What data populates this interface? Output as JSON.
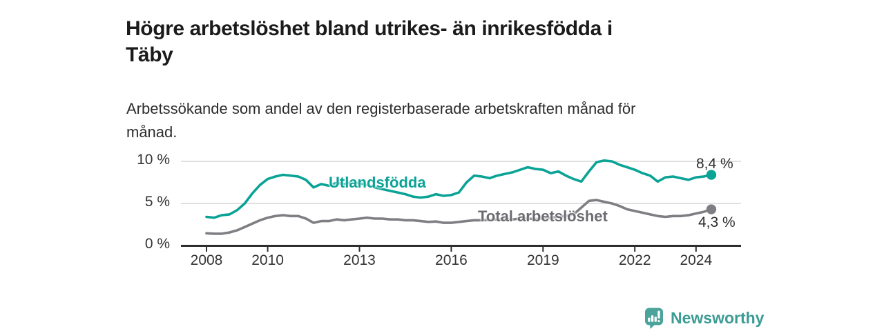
{
  "header": {
    "title": "Högre arbetslöshet bland utrikes- än inrikesfödda i Täby",
    "title_line1": "Högre arbetslöshet bland utrikes- än inrikesfödda i",
    "title_line2": "Täby",
    "subtitle": "Arbetssökande som andel av den registerbaserade arbetskraften månad för månad.",
    "subtitle_line1": "Arbetssökande som andel av den registerbaserade arbetskraften månad för",
    "subtitle_line2": "månad."
  },
  "footer": {
    "brand": "Newsworthy",
    "logo_icon": "bar-chart-speech-bubble-icon",
    "brand_color": "#3c9c95",
    "icon_color": "#4ba39c"
  },
  "chart_data": {
    "type": "line",
    "title": "Högre arbetslöshet bland utrikes- än inrikesfödda i Täby",
    "subtitle": "Arbetssökande som andel av den registerbaserade arbetskraften månad för månad.",
    "x_unit": "year",
    "x_start": 2008.0,
    "x_step": 0.25,
    "xlim": [
      2008,
      2024.7
    ],
    "ylim": [
      0,
      10.5
    ],
    "grid": "horizontal",
    "legend": "inline-labels",
    "x_ticks": [
      2008,
      2010,
      2013,
      2016,
      2019,
      2022,
      2024
    ],
    "y_ticks": [
      {
        "value": 0,
        "label": "0 %"
      },
      {
        "value": 5,
        "label": "5 %"
      },
      {
        "value": 10,
        "label": "10 %"
      }
    ],
    "colors": {
      "grid": "#d5d5d5",
      "axis": "#2e2e2e",
      "tick_text": "#333333"
    },
    "series": [
      {
        "name": "Total arbetslöshet",
        "color": "#7e7e83",
        "label_color": "#6b6b70",
        "end_label": "4,3 %",
        "end_value": 4.3,
        "values": [
          1.45,
          1.4,
          1.4,
          1.55,
          1.8,
          2.2,
          2.6,
          3.0,
          3.3,
          3.5,
          3.6,
          3.5,
          3.5,
          3.2,
          2.7,
          2.9,
          2.9,
          3.1,
          3.0,
          3.1,
          3.2,
          3.3,
          3.2,
          3.2,
          3.1,
          3.1,
          3.0,
          3.0,
          2.9,
          2.8,
          2.85,
          2.7,
          2.7,
          2.8,
          2.9,
          3.0,
          3.0,
          3.05,
          3.1,
          3.1,
          3.1,
          3.2,
          3.2,
          3.15,
          3.2,
          3.3,
          3.4,
          3.5,
          3.7,
          4.5,
          5.3,
          5.4,
          5.2,
          5.0,
          4.7,
          4.3,
          4.1,
          3.9,
          3.7,
          3.5,
          3.4,
          3.5,
          3.5,
          3.6,
          3.8,
          4.0,
          4.3
        ]
      },
      {
        "name": "Utlandsfödda",
        "color": "#0aa396",
        "label_color": "#0aa396",
        "end_label": "8,4 %",
        "end_value": 8.4,
        "values": [
          3.4,
          3.3,
          3.6,
          3.7,
          4.2,
          5.0,
          6.2,
          7.2,
          7.9,
          8.2,
          8.4,
          8.3,
          8.2,
          7.8,
          6.9,
          7.3,
          7.1,
          7.45,
          7.3,
          7.5,
          7.4,
          7.2,
          6.9,
          6.7,
          6.5,
          6.3,
          6.1,
          5.8,
          5.7,
          5.8,
          6.1,
          5.9,
          6.0,
          6.3,
          7.5,
          8.3,
          8.2,
          8.0,
          8.3,
          8.5,
          8.7,
          9.0,
          9.3,
          9.1,
          9.0,
          8.6,
          8.8,
          8.3,
          7.9,
          7.6,
          8.8,
          9.9,
          10.1,
          10.0,
          9.6,
          9.3,
          9.0,
          8.6,
          8.3,
          7.6,
          8.1,
          8.2,
          8.0,
          7.8,
          8.1,
          8.2,
          8.4
        ]
      }
    ]
  }
}
